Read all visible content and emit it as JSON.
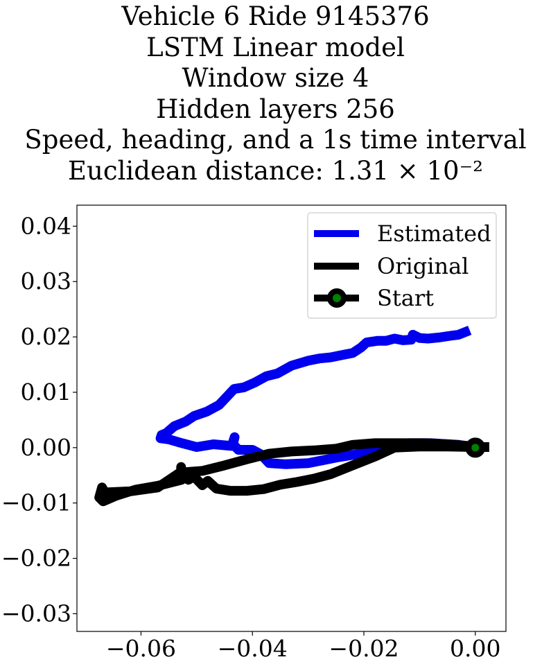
{
  "chart_data": {
    "type": "line",
    "title_lines": [
      "Vehicle 6 Ride 9145376",
      "LSTM Linear model",
      "Window size 4",
      "Hidden layers 256",
      "Speed, heading, and a 1s time interval",
      "Euclidean distance: 1.31 × 10⁻²"
    ],
    "xlabel": "",
    "ylabel": "",
    "xlim": [
      -0.0715,
      0.0055
    ],
    "ylim": [
      -0.0332,
      0.0438
    ],
    "xticks": [
      -0.06,
      -0.04,
      -0.02,
      0.0
    ],
    "xtick_labels": [
      "−0.06",
      "−0.04",
      "−0.02",
      "0.00"
    ],
    "yticks": [
      0.04,
      0.03,
      0.02,
      0.01,
      0.0,
      -0.01,
      -0.02,
      -0.03
    ],
    "ytick_labels": [
      "0.04",
      "0.03",
      "0.02",
      "0.01",
      "0.00",
      "−0.01",
      "−0.02",
      "−0.03"
    ],
    "grid": false,
    "legend_position": "upper right",
    "series": [
      {
        "name": "Estimated",
        "color": "#0000ee",
        "points": [
          [
            0.0,
            0.0
          ],
          [
            -0.003,
            0.0005
          ],
          [
            -0.008,
            0.0008
          ],
          [
            -0.012,
            0.0008
          ],
          [
            -0.016,
            0.0003
          ],
          [
            -0.02,
            -0.001
          ],
          [
            -0.025,
            -0.0018
          ],
          [
            -0.03,
            -0.0028
          ],
          [
            -0.034,
            -0.003
          ],
          [
            -0.037,
            -0.0028
          ],
          [
            -0.0385,
            -0.0012
          ],
          [
            -0.04,
            -0.0004
          ],
          [
            -0.0425,
            -0.0004
          ],
          [
            -0.0435,
            0.0006
          ],
          [
            -0.0432,
            0.0019
          ],
          [
            -0.0437,
            0.0003
          ],
          [
            -0.047,
            0.0006
          ],
          [
            -0.05,
            0.0001
          ],
          [
            -0.053,
            0.0009
          ],
          [
            -0.055,
            0.0015
          ],
          [
            -0.0565,
            0.0017
          ],
          [
            -0.0563,
            0.0023
          ],
          [
            -0.0555,
            0.0026
          ],
          [
            -0.054,
            0.0039
          ],
          [
            -0.052,
            0.0047
          ],
          [
            -0.0505,
            0.0057
          ],
          [
            -0.0482,
            0.0065
          ],
          [
            -0.046,
            0.0077
          ],
          [
            -0.0445,
            0.0093
          ],
          [
            -0.0433,
            0.0106
          ],
          [
            -0.0415,
            0.0109
          ],
          [
            -0.0395,
            0.0118
          ],
          [
            -0.0375,
            0.0129
          ],
          [
            -0.0355,
            0.0134
          ],
          [
            -0.033,
            0.0148
          ],
          [
            -0.03,
            0.0157
          ],
          [
            -0.028,
            0.0161
          ],
          [
            -0.026,
            0.0163
          ],
          [
            -0.024,
            0.0167
          ],
          [
            -0.022,
            0.0171
          ],
          [
            -0.0205,
            0.0181
          ],
          [
            -0.0195,
            0.019
          ],
          [
            -0.0175,
            0.0193
          ],
          [
            -0.016,
            0.0193
          ],
          [
            -0.0145,
            0.0197
          ],
          [
            -0.013,
            0.0194
          ],
          [
            -0.0115,
            0.0195
          ],
          [
            -0.0112,
            0.0204
          ],
          [
            -0.01,
            0.0198
          ],
          [
            -0.0085,
            0.0197
          ],
          [
            -0.0065,
            0.0199
          ],
          [
            -0.0045,
            0.0202
          ],
          [
            -0.003,
            0.0204
          ],
          [
            -0.001,
            0.0212
          ]
        ]
      },
      {
        "name": "Original",
        "color": "#000000",
        "points": [
          [
            0.0025,
            0.0001
          ],
          [
            0.0,
            0.0001
          ],
          [
            -0.005,
            0.0002
          ],
          [
            -0.01,
            0.0002
          ],
          [
            -0.0145,
            0.0
          ],
          [
            -0.018,
            -0.0016
          ],
          [
            -0.022,
            -0.0032
          ],
          [
            -0.026,
            -0.0048
          ],
          [
            -0.029,
            -0.0056
          ],
          [
            -0.032,
            -0.0062
          ],
          [
            -0.035,
            -0.0067
          ],
          [
            -0.038,
            -0.0075
          ],
          [
            -0.041,
            -0.0078
          ],
          [
            -0.044,
            -0.0078
          ],
          [
            -0.0465,
            -0.0074
          ],
          [
            -0.048,
            -0.006
          ],
          [
            -0.049,
            -0.0068
          ],
          [
            -0.0505,
            -0.0052
          ],
          [
            -0.0515,
            -0.0058
          ],
          [
            -0.0528,
            -0.0048
          ],
          [
            -0.0528,
            -0.0035
          ],
          [
            -0.0527,
            -0.0058
          ],
          [
            -0.057,
            -0.0069
          ],
          [
            -0.061,
            -0.0076
          ],
          [
            -0.0645,
            -0.0087
          ],
          [
            -0.0668,
            -0.0097
          ],
          [
            -0.0675,
            -0.009
          ],
          [
            -0.067,
            -0.0072
          ],
          [
            -0.0665,
            -0.0081
          ],
          [
            -0.062,
            -0.0079
          ],
          [
            -0.057,
            -0.0072
          ],
          [
            -0.053,
            -0.0045
          ],
          [
            -0.049,
            -0.0042
          ],
          [
            -0.045,
            -0.0032
          ],
          [
            -0.041,
            -0.0021
          ],
          [
            -0.037,
            -0.0011
          ],
          [
            -0.033,
            -0.0007
          ],
          [
            -0.029,
            -0.0005
          ],
          [
            -0.025,
            -0.0002
          ],
          [
            -0.022,
            0.0005
          ],
          [
            -0.018,
            0.0008
          ],
          [
            -0.013,
            0.0008
          ],
          [
            -0.009,
            0.0008
          ],
          [
            -0.005,
            0.0006
          ],
          [
            0.0,
            0.0002
          ]
        ]
      }
    ],
    "start_point": {
      "name": "Start",
      "x": 0.0,
      "y": 0.0,
      "edge_color": "#000000",
      "face_color": "#008000"
    }
  }
}
